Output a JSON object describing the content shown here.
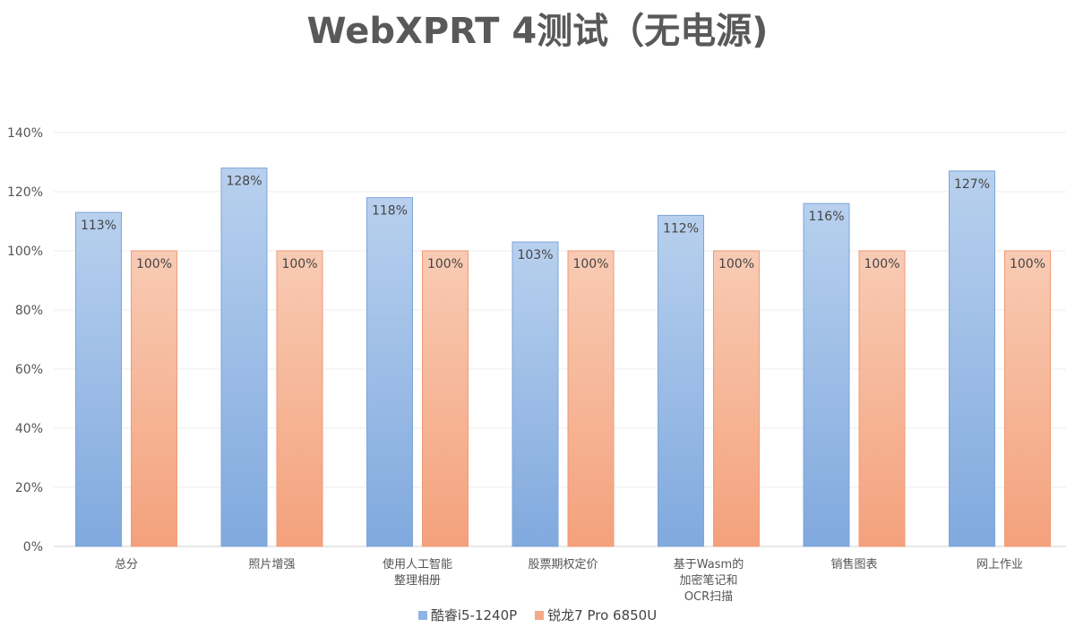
{
  "chart_data": {
    "type": "bar",
    "title": "WebXPRT 4测试（无电源)",
    "categories": [
      [
        "总分"
      ],
      [
        "照片增强"
      ],
      [
        "使用人工智能",
        "整理相册"
      ],
      [
        "股票期权定价"
      ],
      [
        "基于Wasm的",
        "加密笔记和",
        "OCR扫描"
      ],
      [
        "销售图表"
      ],
      [
        "网上作业"
      ]
    ],
    "series": [
      {
        "name": "酷睿i5-1240P",
        "values": [
          113,
          128,
          118,
          103,
          112,
          116,
          127
        ],
        "labels": [
          "113%",
          "128%",
          "118%",
          "103%",
          "112%",
          "116%",
          "127%"
        ],
        "color": "#8fb4e3"
      },
      {
        "name": "锐龙7 Pro 6850U",
        "values": [
          100,
          100,
          100,
          100,
          100,
          100,
          100
        ],
        "labels": [
          "100%",
          "100%",
          "100%",
          "100%",
          "100%",
          "100%",
          "100%"
        ],
        "color": "#f5a987"
      }
    ],
    "yticks": [
      "0%",
      "20%",
      "40%",
      "60%",
      "80%",
      "100%",
      "120%",
      "140%"
    ],
    "ylim": [
      0,
      140
    ],
    "grid": true,
    "legend_position": "bottom"
  }
}
